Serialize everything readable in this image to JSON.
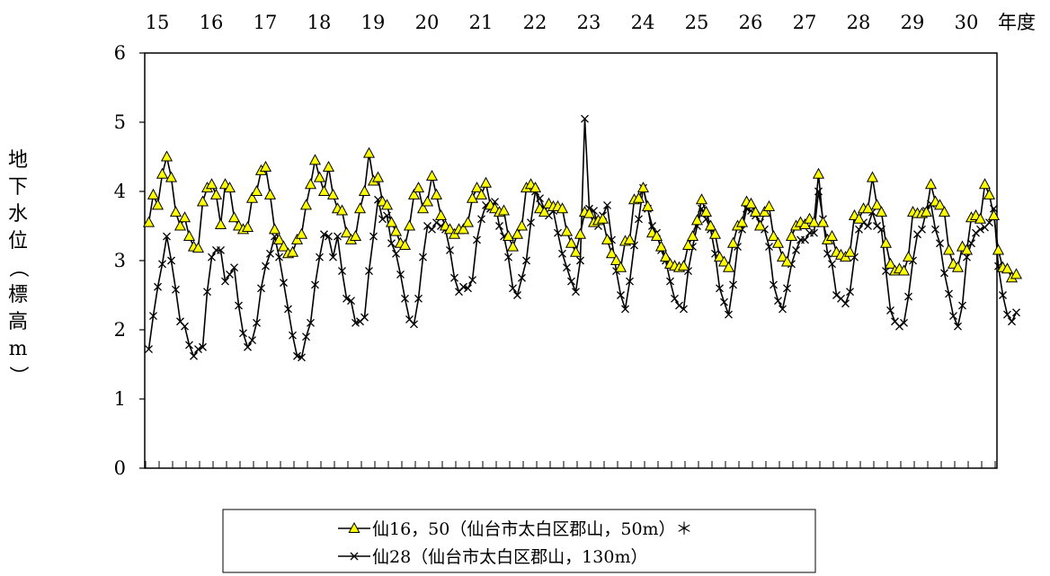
{
  "chart_data": {
    "type": "line",
    "xlabel": "年度",
    "ylabel": "地下水位（標高m）",
    "ylim": [
      0,
      6
    ],
    "yticks": [
      0,
      1,
      2,
      3,
      4,
      5,
      6
    ],
    "year_labels": [
      "15",
      "16",
      "17",
      "18",
      "19",
      "20",
      "21",
      "22",
      "23",
      "24",
      "25",
      "26",
      "27",
      "28",
      "29",
      "30"
    ],
    "x_unit": "month index (0 = April of fiscal year 15)",
    "series": [
      {
        "name": "仙16，50（仙台市太白区郡山，50m）＊",
        "marker": "triangle",
        "color": "#ffff00",
        "values": [
          3.55,
          3.95,
          3.8,
          4.25,
          4.5,
          4.2,
          3.7,
          3.5,
          3.62,
          3.35,
          3.2,
          3.18,
          3.85,
          4.05,
          4.1,
          3.95,
          3.52,
          4.1,
          4.05,
          3.62,
          3.5,
          3.45,
          3.48,
          3.9,
          4.0,
          4.3,
          4.35,
          3.95,
          3.45,
          3.3,
          3.2,
          3.1,
          3.12,
          3.3,
          3.38,
          3.8,
          4.1,
          4.45,
          4.2,
          4.0,
          4.35,
          3.95,
          3.75,
          3.72,
          3.4,
          3.3,
          3.35,
          3.75,
          4.0,
          4.55,
          4.15,
          4.2,
          3.85,
          3.8,
          3.55,
          3.42,
          3.25,
          3.22,
          3.5,
          3.95,
          4.05,
          3.75,
          3.85,
          4.22,
          3.95,
          3.65,
          3.5,
          3.45,
          3.38,
          3.45,
          3.45,
          3.55,
          3.9,
          4.05,
          3.95,
          4.12,
          3.8,
          3.75,
          3.7,
          3.72,
          3.35,
          3.2,
          3.38,
          3.5,
          4.05,
          4.1,
          4.05,
          3.75,
          3.7,
          3.82,
          3.78,
          3.78,
          3.75,
          3.42,
          3.25,
          3.12,
          3.38,
          3.7,
          3.68,
          3.55,
          3.58,
          3.6,
          3.3,
          3.1,
          3.0,
          2.9,
          3.28,
          3.3,
          3.88,
          3.9,
          4.05,
          3.78,
          3.4,
          3.35,
          3.2,
          3.05,
          2.95,
          2.92,
          2.9,
          2.92,
          3.22,
          3.35,
          3.58,
          3.88,
          3.7,
          3.5,
          3.38,
          3.05,
          2.98,
          2.9,
          3.25,
          3.5,
          3.55,
          3.85,
          3.82,
          3.7,
          3.5,
          3.7,
          3.78,
          3.35,
          3.25,
          3.05,
          2.98,
          3.35,
          3.5,
          3.55,
          3.52,
          3.6,
          3.55,
          4.25,
          3.55,
          3.3,
          3.35,
          3.12,
          3.08,
          3.05,
          3.12,
          3.65,
          3.6,
          3.75,
          3.75,
          4.2,
          3.8,
          3.7,
          3.25,
          2.95,
          2.85,
          2.88,
          2.85,
          3.05,
          3.7,
          3.68,
          3.68,
          3.7,
          4.1,
          3.85,
          3.8,
          3.7,
          3.15,
          2.95,
          2.9,
          3.2,
          3.15,
          3.62,
          3.65,
          3.6,
          4.1,
          3.95,
          3.65,
          3.15,
          2.9,
          2.88,
          2.75,
          2.8
        ]
      },
      {
        "name": "仙28（仙台市太白区郡山，130m）",
        "marker": "x",
        "color": "#000000",
        "values": [
          1.72,
          2.2,
          2.62,
          2.95,
          3.35,
          3.0,
          2.58,
          2.12,
          2.05,
          1.78,
          1.62,
          1.72,
          1.75,
          2.55,
          3.05,
          3.15,
          3.15,
          2.7,
          2.8,
          2.9,
          2.35,
          1.95,
          1.75,
          1.85,
          2.1,
          2.6,
          2.92,
          3.1,
          3.35,
          3.05,
          2.68,
          2.3,
          1.92,
          1.62,
          1.6,
          1.9,
          2.1,
          2.65,
          3.05,
          3.38,
          3.35,
          3.05,
          3.35,
          2.85,
          2.45,
          2.42,
          2.1,
          2.12,
          2.18,
          2.85,
          3.35,
          3.88,
          3.6,
          3.65,
          3.25,
          3.1,
          2.8,
          2.45,
          2.15,
          2.08,
          2.45,
          3.05,
          3.5,
          3.45,
          3.55,
          3.5,
          3.45,
          3.15,
          2.75,
          2.55,
          2.62,
          2.6,
          2.72,
          3.3,
          3.6,
          3.8,
          3.75,
          3.85,
          3.5,
          3.35,
          3.05,
          2.6,
          2.5,
          2.75,
          3.0,
          3.55,
          4.0,
          3.9,
          3.75,
          3.65,
          3.72,
          3.4,
          3.1,
          2.9,
          2.7,
          2.55,
          3.0,
          5.05,
          3.75,
          3.72,
          3.5,
          3.65,
          3.8,
          3.3,
          2.85,
          2.5,
          2.3,
          2.7,
          3.22,
          3.6,
          4.05,
          3.75,
          3.5,
          3.4,
          3.15,
          3.0,
          2.7,
          2.45,
          2.35,
          2.3,
          2.85,
          3.2,
          3.5,
          3.75,
          3.6,
          3.45,
          3.1,
          2.6,
          2.4,
          2.22,
          2.65,
          3.2,
          3.45,
          3.75,
          3.72,
          3.65,
          3.55,
          3.45,
          3.2,
          2.65,
          2.42,
          2.3,
          2.6,
          2.95,
          3.15,
          3.3,
          3.3,
          3.4,
          3.4,
          4.0,
          3.6,
          3.1,
          2.95,
          2.5,
          2.45,
          2.38,
          2.55,
          3.05,
          3.45,
          3.55,
          3.5,
          3.7,
          3.5,
          3.45,
          2.85,
          2.28,
          2.12,
          2.05,
          2.1,
          2.48,
          3.0,
          3.38,
          3.45,
          3.72,
          3.82,
          3.45,
          3.25,
          2.82,
          2.52,
          2.2,
          2.05,
          2.35,
          3.05,
          3.25,
          3.4,
          3.45,
          3.48,
          3.55,
          3.75,
          2.92,
          2.5,
          2.22,
          2.12,
          2.25
        ]
      }
    ],
    "grid": false,
    "legend_placement": "bottom"
  }
}
